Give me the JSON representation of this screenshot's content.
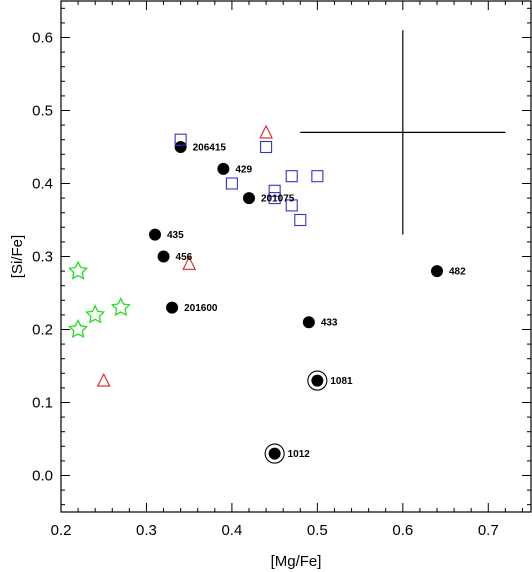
{
  "chart_data": {
    "type": "scatter",
    "xlabel": "[Mg/Fe]",
    "ylabel": "[Si/Fe]",
    "xlim": [
      0.2,
      0.75
    ],
    "ylim": [
      -0.05,
      0.65
    ],
    "xticks": [
      0.2,
      0.3,
      0.4,
      0.5,
      0.6,
      0.7
    ],
    "yticks": [
      0.0,
      0.1,
      0.2,
      0.3,
      0.4,
      0.5,
      0.6
    ],
    "xtick_labels": [
      "0.2",
      "0.3",
      "0.4",
      "0.5",
      "0.6",
      "0.7"
    ],
    "ytick_labels": [
      "0.0",
      "0.1",
      "0.2",
      "0.3",
      "0.4",
      "0.5",
      "0.6"
    ],
    "grid": false,
    "colors": {
      "filled_circle": "#000000",
      "open_square": "#3333cc",
      "open_triangle": "#dd2222",
      "open_star": "#22dd22",
      "error_bar": "#000000"
    },
    "series": [
      {
        "marker": "filled-circle",
        "points": [
          {
            "x": 0.34,
            "y": 0.45,
            "label": "206415"
          },
          {
            "x": 0.39,
            "y": 0.42,
            "label": "429"
          },
          {
            "x": 0.42,
            "y": 0.38,
            "label": "201075"
          },
          {
            "x": 0.31,
            "y": 0.33,
            "label": "435"
          },
          {
            "x": 0.32,
            "y": 0.3,
            "label": "456"
          },
          {
            "x": 0.33,
            "y": 0.23,
            "label": "201600"
          },
          {
            "x": 0.64,
            "y": 0.28,
            "label": "482"
          },
          {
            "x": 0.49,
            "y": 0.21,
            "label": "433"
          },
          {
            "x": 0.5,
            "y": 0.13,
            "label": "1081",
            "ring": true
          },
          {
            "x": 0.45,
            "y": 0.03,
            "label": "1012",
            "ring": true
          }
        ]
      },
      {
        "marker": "open-square",
        "points": [
          {
            "x": 0.34,
            "y": 0.46
          },
          {
            "x": 0.44,
            "y": 0.45
          },
          {
            "x": 0.4,
            "y": 0.4
          },
          {
            "x": 0.45,
            "y": 0.39
          },
          {
            "x": 0.45,
            "y": 0.38
          },
          {
            "x": 0.47,
            "y": 0.41
          },
          {
            "x": 0.5,
            "y": 0.41
          },
          {
            "x": 0.47,
            "y": 0.37
          },
          {
            "x": 0.48,
            "y": 0.35
          }
        ]
      },
      {
        "marker": "open-triangle",
        "points": [
          {
            "x": 0.44,
            "y": 0.47
          },
          {
            "x": 0.35,
            "y": 0.29
          },
          {
            "x": 0.25,
            "y": 0.13
          }
        ]
      },
      {
        "marker": "open-star",
        "points": [
          {
            "x": 0.22,
            "y": 0.28
          },
          {
            "x": 0.27,
            "y": 0.23
          },
          {
            "x": 0.24,
            "y": 0.22
          },
          {
            "x": 0.22,
            "y": 0.2
          }
        ]
      }
    ],
    "error_bar": {
      "x": 0.6,
      "y": 0.47,
      "x_err": 0.12,
      "y_err": 0.14
    }
  }
}
